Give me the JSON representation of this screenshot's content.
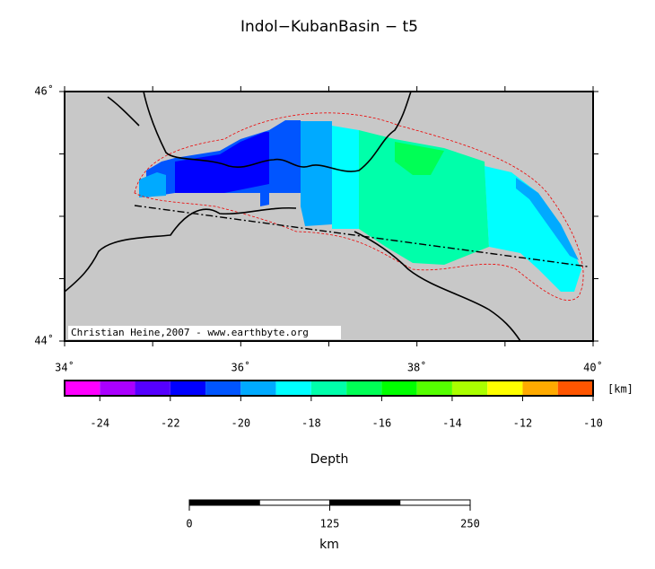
{
  "map": {
    "title": "Indol−KubanBasin − t5",
    "credit": "Christian Heine,2007 - www.earthbyte.org",
    "lon_range": [
      34,
      40
    ],
    "lat_range": [
      44,
      46
    ],
    "lon_ticks": [
      34,
      35,
      36,
      37,
      38,
      39,
      40
    ],
    "lat_ticks": [
      44,
      44.5,
      45,
      45.5,
      46
    ],
    "lon_labels": [
      {
        "value": 34,
        "label": "34˚"
      },
      {
        "value": 36,
        "label": "36˚"
      },
      {
        "value": 38,
        "label": "38˚"
      },
      {
        "value": 40,
        "label": "40˚"
      }
    ],
    "lat_labels": [
      {
        "value": 44,
        "label": "44˚"
      },
      {
        "value": 46,
        "label": "46˚"
      }
    ],
    "colorbar": {
      "range": [
        -25,
        -10
      ],
      "ticks": [
        -24,
        -22,
        -20,
        -18,
        -16,
        -14,
        -12,
        -10
      ],
      "colors": [
        "#ff00ff",
        "#aa00ff",
        "#5500ff",
        "#0000ff",
        "#0055ff",
        "#00aaff",
        "#00ffff",
        "#00ffaa",
        "#00ff55",
        "#00ff00",
        "#55ff00",
        "#aaff00",
        "#ffff00",
        "#ffaa00",
        "#ff5500"
      ],
      "unit": "[km]",
      "label": "Depth"
    },
    "scale_bar": {
      "range": [
        0,
        250
      ],
      "ticks": [
        0,
        125,
        250
      ],
      "segments": 4,
      "unit": "km"
    }
  }
}
